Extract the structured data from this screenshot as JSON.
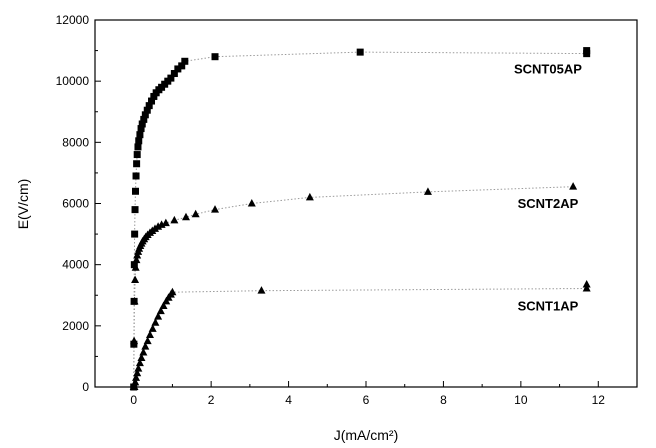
{
  "chart_data": {
    "type": "scatter",
    "title": "",
    "xlabel": "J(mA/cm²)",
    "ylabel": "E(V/cm)",
    "xlim": [
      -1,
      13
    ],
    "ylim": [
      0,
      12000
    ],
    "xticks": [
      0,
      2,
      4,
      6,
      8,
      10,
      12
    ],
    "yticks": [
      0,
      2000,
      4000,
      6000,
      8000,
      10000,
      12000
    ],
    "xtick_labels": [
      "0",
      "2",
      "4",
      "6",
      "8",
      "10",
      "12"
    ],
    "ytick_labels": [
      "0",
      "2000",
      "4000",
      "6000",
      "8000",
      "10000",
      "12000"
    ],
    "grid": false,
    "series": [
      {
        "name": "SCNT05AP",
        "marker": "square",
        "label_x": 10.7,
        "label_y": 10250,
        "x": [
          0,
          0.004,
          0.01,
          0.016,
          0.024,
          0.034,
          0.046,
          0.06,
          0.075,
          0.09,
          0.11,
          0.13,
          0.16,
          0.19,
          0.22,
          0.26,
          0.3,
          0.35,
          0.4,
          0.46,
          0.52,
          0.58,
          0.65,
          0.72,
          0.8,
          0.88,
          0.96,
          1.05,
          1.14,
          1.24,
          1.32,
          2.1,
          5.85,
          11.7,
          11.7
        ],
        "y": [
          0,
          1400,
          2800,
          4000,
          5000,
          5800,
          6400,
          6900,
          7300,
          7600,
          7850,
          8050,
          8250,
          8450,
          8600,
          8750,
          8900,
          9050,
          9200,
          9350,
          9500,
          9620,
          9720,
          9800,
          9900,
          10000,
          10100,
          10250,
          10400,
          10500,
          10650,
          10800,
          10950,
          10900,
          11000
        ]
      },
      {
        "name": "SCNT2AP",
        "marker": "triangle",
        "label_x": 10.7,
        "label_y": 5850,
        "x": [
          0,
          0.01,
          0.02,
          0.035,
          0.05,
          0.07,
          0.09,
          0.115,
          0.14,
          0.17,
          0.2,
          0.23,
          0.27,
          0.31,
          0.36,
          0.42,
          0.48,
          0.55,
          0.63,
          0.72,
          0.83,
          1.05,
          1.35,
          1.6,
          2.1,
          3.05,
          4.55,
          7.6,
          11.35
        ],
        "y": [
          0,
          1500,
          2800,
          3500,
          3900,
          4150,
          4300,
          4420,
          4520,
          4610,
          4690,
          4760,
          4830,
          4900,
          4970,
          5040,
          5100,
          5170,
          5240,
          5300,
          5360,
          5450,
          5550,
          5650,
          5800,
          6000,
          6200,
          6380,
          6550
        ]
      },
      {
        "name": "SCNT1AP",
        "marker": "triangle",
        "label_x": 10.7,
        "label_y": 2500,
        "x": [
          0.02,
          0.04,
          0.06,
          0.09,
          0.12,
          0.16,
          0.2,
          0.25,
          0.3,
          0.36,
          0.42,
          0.49,
          0.56,
          0.63,
          0.7,
          0.77,
          0.84,
          0.9,
          0.96,
          1.0,
          3.3,
          11.7,
          11.7
        ],
        "y": [
          0,
          150,
          300,
          450,
          600,
          780,
          950,
          1130,
          1320,
          1500,
          1700,
          1900,
          2100,
          2300,
          2480,
          2650,
          2800,
          2920,
          3020,
          3100,
          3150,
          3220,
          3350
        ]
      }
    ]
  }
}
